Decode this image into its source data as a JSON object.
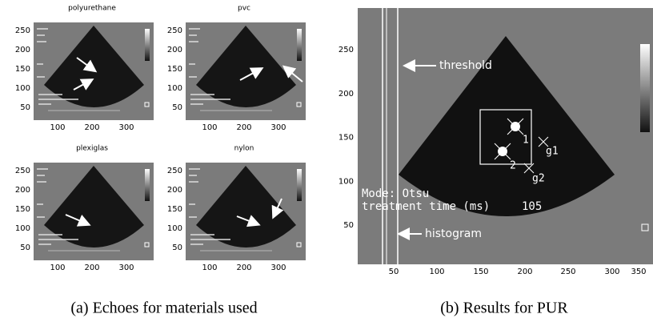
{
  "panels": [
    {
      "title": "polyurethane",
      "yticks": [
        "250",
        "200",
        "150",
        "100",
        "50"
      ],
      "xticks": [
        "100",
        "200",
        "300"
      ]
    },
    {
      "title": "pvc",
      "yticks": [
        "250",
        "200",
        "150",
        "100",
        "50"
      ],
      "xticks": [
        "100",
        "200",
        "300"
      ]
    },
    {
      "title": "plexiglas",
      "yticks": [
        "250",
        "200",
        "150",
        "100",
        "50"
      ],
      "xticks": [
        "100",
        "200",
        "300"
      ]
    },
    {
      "title": "nylon",
      "yticks": [
        "250",
        "200",
        "150",
        "100",
        "50"
      ],
      "xticks": [
        "100",
        "200",
        "300"
      ]
    }
  ],
  "result": {
    "yticks": [
      "250",
      "200",
      "150",
      "100",
      "50"
    ],
    "xticks": [
      "50",
      "100",
      "150",
      "200",
      "250",
      "300",
      "350"
    ],
    "threshold": "threshold",
    "histogram": "histogram",
    "mode": "Mode: Otsu",
    "treatment_time": "treatment time (ms)",
    "treatment_value": "105",
    "labels": [
      "1",
      "2",
      "g1",
      "g2"
    ]
  },
  "captions": [
    "(a) Echoes for materials used",
    "(b) Results for PUR"
  ]
}
